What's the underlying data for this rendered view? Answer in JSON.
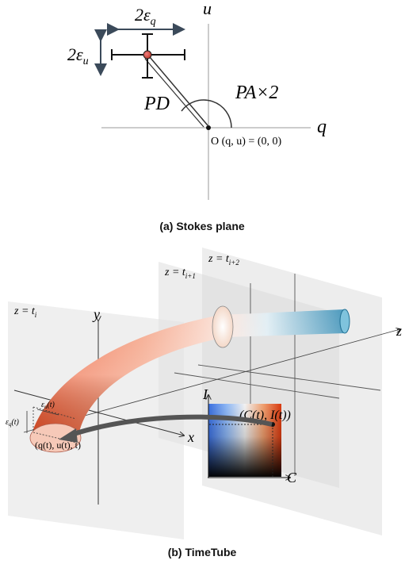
{
  "panel_a": {
    "caption": "(a) Stokes plane",
    "axis_u": "u",
    "axis_q": "q",
    "err_q": "2ε",
    "err_q_sub": "q",
    "err_u": "2ε",
    "err_u_sub": "u",
    "pd_label": "PD",
    "pa_label": "PA×2",
    "origin_label": "O (q, u) = (0, 0)"
  },
  "panel_b": {
    "caption": "(b) TimeTube",
    "plane1": "z = t",
    "plane1_sub": "i",
    "plane2": "z = t",
    "plane2_sub": "i+1",
    "plane3": "z = t",
    "plane3_sub": "i+2",
    "axis_y": "y",
    "axis_x": "x",
    "axis_z": "z",
    "axis_I": "I",
    "axis_C": "C",
    "eps_u": "ε",
    "eps_u_sub": "u",
    "eps_u_tail": "(t)",
    "eps_q": "ε",
    "eps_q_sub": "q",
    "eps_q_tail": "(t)",
    "point_label": "(q(t), u(t), t)",
    "color_point": "(C(t), I(t))"
  },
  "colors": {
    "tube_red": "#e8502a",
    "tube_blue": "#2f8fb8",
    "arrow": "#555555",
    "plane": "#e8e8e8"
  }
}
